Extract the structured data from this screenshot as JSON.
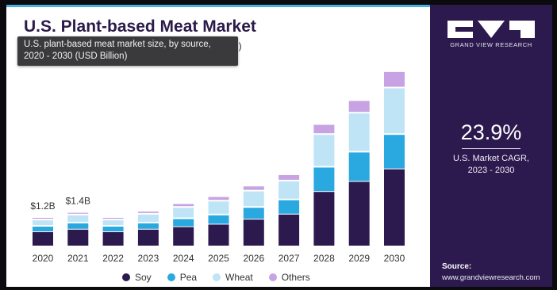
{
  "header": {
    "title": "U.S. Plant-based Meat Market",
    "title_tail": "n)",
    "tooltip_line1": "U.S. plant-based meat market size, by source,",
    "tooltip_line2": "2020 - 2030 (USD Billion)"
  },
  "sidebar": {
    "brand": "GRAND VIEW RESEARCH",
    "cagr_value": "23.9%",
    "cagr_label_line1": "U.S. Market CAGR,",
    "cagr_label_line2": "2023 - 2030",
    "source_label": "Source:",
    "source_url": "www.grandviewresearch.com"
  },
  "chart_data": {
    "type": "bar",
    "stacked": true,
    "categories": [
      "2020",
      "2021",
      "2022",
      "2023",
      "2024",
      "2025",
      "2026",
      "2027",
      "2028",
      "2029",
      "2030"
    ],
    "series": [
      {
        "name": "Soy",
        "color": "#2c1a4e",
        "values": [
          0.6,
          0.7,
          0.6,
          0.7,
          0.8,
          0.9,
          1.1,
          1.3,
          2.2,
          2.6,
          3.1
        ]
      },
      {
        "name": "Pea",
        "color": "#2aa8e0",
        "values": [
          0.25,
          0.28,
          0.25,
          0.28,
          0.35,
          0.4,
          0.5,
          0.6,
          1.0,
          1.2,
          1.4
        ]
      },
      {
        "name": "Wheat",
        "color": "#bfe4f6",
        "values": [
          0.25,
          0.32,
          0.25,
          0.35,
          0.45,
          0.55,
          0.65,
          0.75,
          1.3,
          1.55,
          1.85
        ]
      },
      {
        "name": "Others",
        "color": "#c7a3e3",
        "values": [
          0.1,
          0.1,
          0.1,
          0.12,
          0.15,
          0.18,
          0.2,
          0.25,
          0.4,
          0.5,
          0.65
        ]
      }
    ],
    "annotations": [
      {
        "category": "2020",
        "text": "$1.2B"
      },
      {
        "category": "2021",
        "text": "$1.4B"
      }
    ],
    "ylim": [
      0,
      7.5
    ],
    "grid": false,
    "legend_position": "bottom"
  }
}
